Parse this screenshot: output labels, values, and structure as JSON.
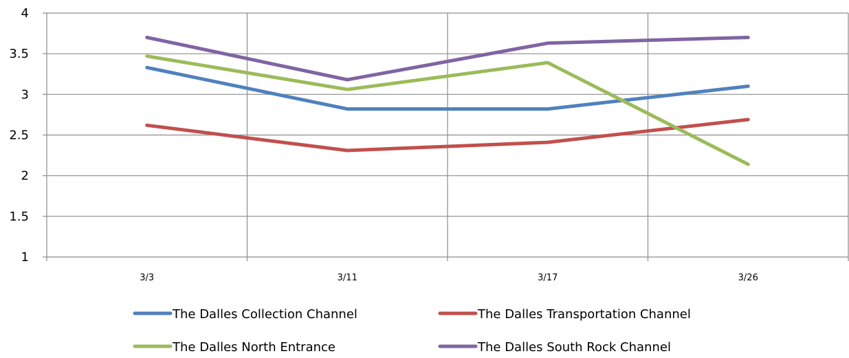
{
  "chart_data": {
    "type": "line",
    "title": "",
    "xlabel": "",
    "ylabel": "",
    "categories": [
      "3/3",
      "3/11",
      "3/17",
      "3/26"
    ],
    "ylim": [
      1,
      4
    ],
    "yticks": [
      "1",
      "1.5",
      "2",
      "2.5",
      "3",
      "3.5",
      "4"
    ],
    "grid": "on",
    "legend_position": "bottom",
    "series": [
      {
        "name": "The Dalles Collection Channel",
        "color": "#4f81bd",
        "values": [
          3.33,
          2.82,
          2.82,
          3.1
        ]
      },
      {
        "name": "The Dalles  Transportation Channel",
        "color": "#c0504d",
        "values": [
          2.62,
          2.31,
          2.41,
          2.69
        ]
      },
      {
        "name": "The Dalles North Entrance",
        "color": "#9bbb59",
        "values": [
          3.47,
          3.06,
          3.39,
          2.14
        ]
      },
      {
        "name": "The Dalles South Rock Channel",
        "color": "#8064a2",
        "values": [
          3.7,
          3.18,
          3.63,
          3.7
        ]
      }
    ]
  }
}
